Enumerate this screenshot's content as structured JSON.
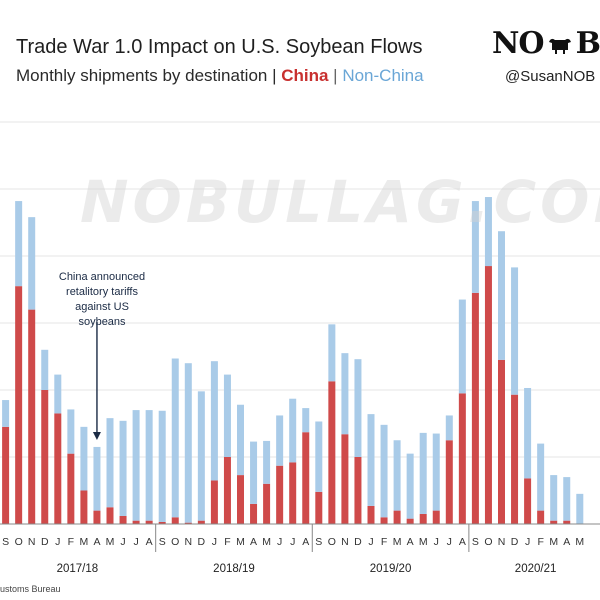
{
  "header": {
    "title": "Trade War 1.0 Impact on U.S. Soybean Flows",
    "subtitle_prefix": "Monthly shipments by destination | ",
    "subtitle_china": "China",
    "subtitle_sep": " | ",
    "subtitle_nonchina": "Non-China",
    "logo_left": "NO",
    "logo_right": "BU",
    "handle": "@SusanNOB"
  },
  "source": "ustoms Bureau",
  "watermark": "NOBULLAG.COM",
  "annotation": "China announced retalitory tariffs against US soybeans",
  "colors": {
    "china": "#cf4a4a",
    "non_china": "#a9cbe8",
    "annotation": "#1a2a44"
  },
  "chart_data": {
    "type": "bar",
    "stacked": true,
    "ylim": [
      0,
      6
    ],
    "grid": true,
    "x_tick_labels": [
      "S",
      "O",
      "N",
      "D",
      "J",
      "F",
      "M",
      "A",
      "M",
      "J",
      "J",
      "A",
      "S",
      "O",
      "N",
      "D",
      "J",
      "F",
      "M",
      "A",
      "M",
      "J",
      "J",
      "A",
      "S",
      "O",
      "N",
      "D",
      "J",
      "F",
      "M",
      "A",
      "M",
      "J",
      "J",
      "A",
      "S",
      "O",
      "N",
      "D",
      "J",
      "F",
      "M",
      "A",
      "M"
    ],
    "period_labels": [
      {
        "label": "2017/18",
        "start": 0,
        "end": 11
      },
      {
        "label": "2018/19",
        "start": 12,
        "end": 23
      },
      {
        "label": "2019/20",
        "start": 24,
        "end": 35
      },
      {
        "label": "2020/21",
        "start": 36,
        "end": 44
      }
    ],
    "annotation_index": 7,
    "series": [
      {
        "name": "China",
        "values": [
          1.45,
          3.55,
          3.2,
          2.0,
          1.65,
          1.05,
          0.5,
          0.2,
          0.25,
          0.12,
          0.05,
          0.05,
          0.03,
          0.1,
          0.02,
          0.05,
          0.65,
          1.0,
          0.73,
          0.3,
          0.6,
          0.87,
          0.92,
          1.37,
          0.48,
          2.13,
          1.34,
          1.0,
          0.27,
          0.1,
          0.2,
          0.08,
          0.15,
          0.2,
          1.25,
          1.95,
          3.45,
          3.85,
          2.45,
          1.93,
          0.68,
          0.2,
          0.05,
          0.05,
          0.0
        ]
      },
      {
        "name": "Non-China",
        "values": [
          0.4,
          1.27,
          1.38,
          0.6,
          0.58,
          0.66,
          0.95,
          0.95,
          1.33,
          1.42,
          1.65,
          1.65,
          1.66,
          2.37,
          2.38,
          1.93,
          1.78,
          1.23,
          1.05,
          0.93,
          0.64,
          0.75,
          0.95,
          0.36,
          1.05,
          0.85,
          1.21,
          1.46,
          1.37,
          1.38,
          1.05,
          0.97,
          1.21,
          1.15,
          0.37,
          1.4,
          1.37,
          1.03,
          1.92,
          1.9,
          1.35,
          1.0,
          0.68,
          0.65,
          0.45
        ]
      }
    ]
  }
}
